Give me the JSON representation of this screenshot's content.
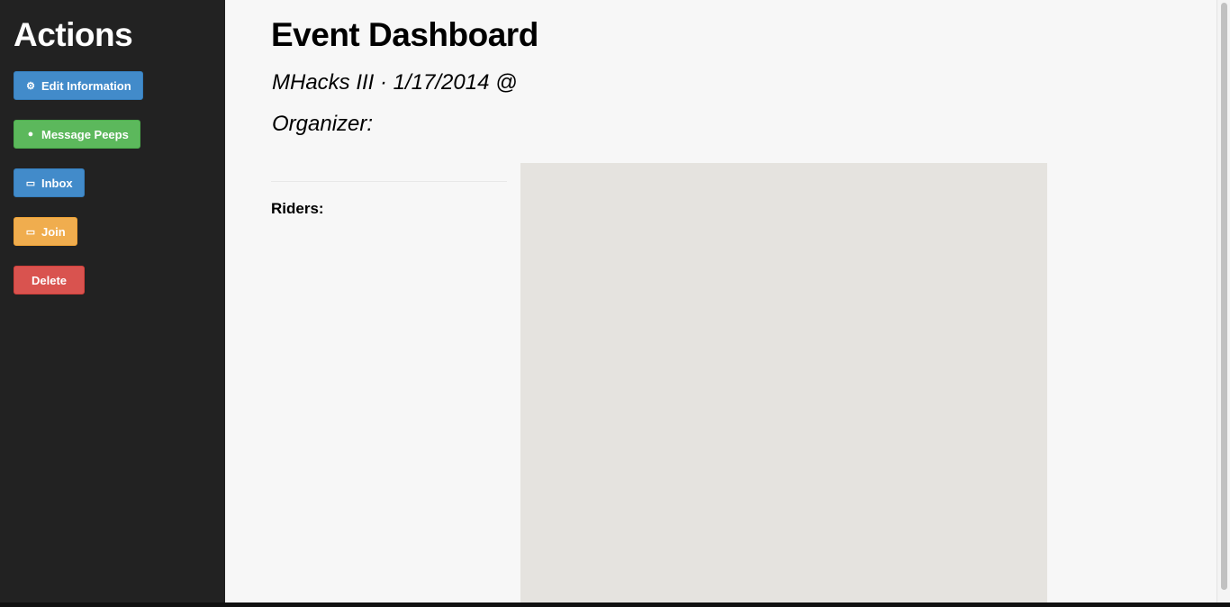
{
  "sidebar": {
    "title": "Actions",
    "buttons": [
      {
        "label": "Edit Information",
        "icon": "gear-icon",
        "color": "#428bca"
      },
      {
        "label": "Message Peeps",
        "icon": "comment-icon",
        "color": "#5cb85c"
      },
      {
        "label": "Inbox",
        "icon": "inbox-icon",
        "color": "#428bca"
      },
      {
        "label": "Join",
        "icon": "inbox-icon",
        "color": "#f0ad4e"
      },
      {
        "label": "Delete",
        "color": "#d9534f"
      }
    ]
  },
  "main": {
    "title": "Event Dashboard",
    "event_line": "MHacks III · 1/17/2014 @",
    "organizer": "Organizer:",
    "riders_label": "Riders:"
  }
}
